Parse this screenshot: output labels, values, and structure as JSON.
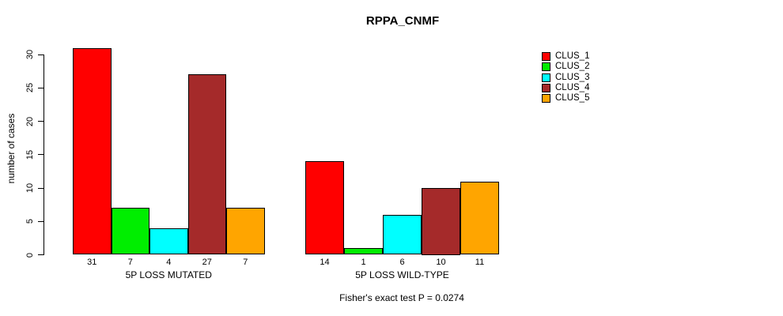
{
  "title": "RPPA_CNMF",
  "footer_note": "Fisher's exact test P = 0.0274",
  "y_axis": {
    "label": "number of cases",
    "ticks": [
      0,
      5,
      10,
      15,
      20,
      25,
      30
    ]
  },
  "legend": {
    "items": [
      {
        "label": "CLUS_1",
        "color": "#FF0000"
      },
      {
        "label": "CLUS_2",
        "color": "#00EE00"
      },
      {
        "label": "CLUS_3",
        "color": "#00FFFF"
      },
      {
        "label": "CLUS_4",
        "color": "#A52A2A"
      },
      {
        "label": "CLUS_5",
        "color": "#FFA500"
      }
    ]
  },
  "chart_data": {
    "type": "bar",
    "title": "RPPA_CNMF",
    "xlabel": "",
    "ylabel": "number of cases",
    "ylim": [
      0,
      31
    ],
    "yticks": [
      0,
      5,
      10,
      15,
      20,
      25,
      30
    ],
    "grid": false,
    "legend_position": "right-outside",
    "series": [
      "CLUS_1",
      "CLUS_2",
      "CLUS_3",
      "CLUS_4",
      "CLUS_5"
    ],
    "series_colors": [
      "#FF0000",
      "#00EE00",
      "#00FFFF",
      "#A52A2A",
      "#FFA500"
    ],
    "groups": [
      {
        "label": "5P LOSS MUTATED",
        "values": [
          31,
          7,
          4,
          27,
          7
        ]
      },
      {
        "label": "5P LOSS WILD-TYPE",
        "values": [
          14,
          1,
          6,
          10,
          11
        ]
      }
    ],
    "bar_value_labels_shown": true,
    "annotation": "Fisher's exact test P = 0.0274"
  }
}
